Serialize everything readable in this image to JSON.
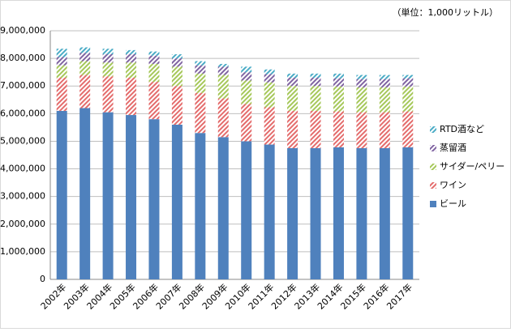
{
  "chart_data": {
    "type": "stacked-bar",
    "unit_note": "（単位：1,000リットル）",
    "categories": [
      "2002年",
      "2003年",
      "2004年",
      "2005年",
      "2006年",
      "2007年",
      "2008年",
      "2009年",
      "2010年",
      "2011年",
      "2012年",
      "2013年",
      "2014年",
      "2015年",
      "2016年",
      "2017年"
    ],
    "series": [
      {
        "name": "ビール",
        "color": "#4f81bd",
        "pattern": "solid",
        "values": [
          6100000,
          6200000,
          6050000,
          5950000,
          5800000,
          5600000,
          5300000,
          5150000,
          5000000,
          4880000,
          4750000,
          4750000,
          4780000,
          4750000,
          4750000,
          4780000
        ]
      },
      {
        "name": "ワイン",
        "color": "#e46c6c",
        "pattern": "hatch",
        "values": [
          1200000,
          1200000,
          1300000,
          1350000,
          1350000,
          1400000,
          1450000,
          1400000,
          1350000,
          1350000,
          1350000,
          1350000,
          1300000,
          1300000,
          1300000,
          1300000
        ]
      },
      {
        "name": "サイダー/ペリー",
        "color": "#a6c85a",
        "pattern": "hatch",
        "values": [
          450000,
          500000,
          500000,
          550000,
          650000,
          700000,
          700000,
          850000,
          850000,
          900000,
          900000,
          900000,
          900000,
          900000,
          900000,
          900000
        ]
      },
      {
        "name": "蒸留酒",
        "color": "#8064a2",
        "pattern": "hatch",
        "values": [
          300000,
          300000,
          300000,
          300000,
          300000,
          300000,
          300000,
          300000,
          300000,
          300000,
          300000,
          300000,
          300000,
          300000,
          300000,
          300000
        ]
      },
      {
        "name": "RTD酒など",
        "color": "#4bacc6",
        "pattern": "hatch",
        "values": [
          300000,
          200000,
          200000,
          150000,
          150000,
          150000,
          150000,
          100000,
          200000,
          170000,
          150000,
          150000,
          170000,
          150000,
          150000,
          120000
        ]
      }
    ],
    "ylim": [
      0,
      9000000
    ],
    "yticks": [
      {
        "value": 0,
        "label": "0"
      },
      {
        "value": 1000000,
        "label": "1,000,000"
      },
      {
        "value": 2000000,
        "label": "2,000,000"
      },
      {
        "value": 3000000,
        "label": "3,000,000"
      },
      {
        "value": 4000000,
        "label": "4,000,000"
      },
      {
        "value": 5000000,
        "label": "5,000,000"
      },
      {
        "value": 6000000,
        "label": "6,000,000"
      },
      {
        "value": 7000000,
        "label": "7,000,000"
      },
      {
        "value": 8000000,
        "label": "8,000,000"
      },
      {
        "value": 9000000,
        "label": "9,000,000"
      }
    ],
    "grid": true
  }
}
